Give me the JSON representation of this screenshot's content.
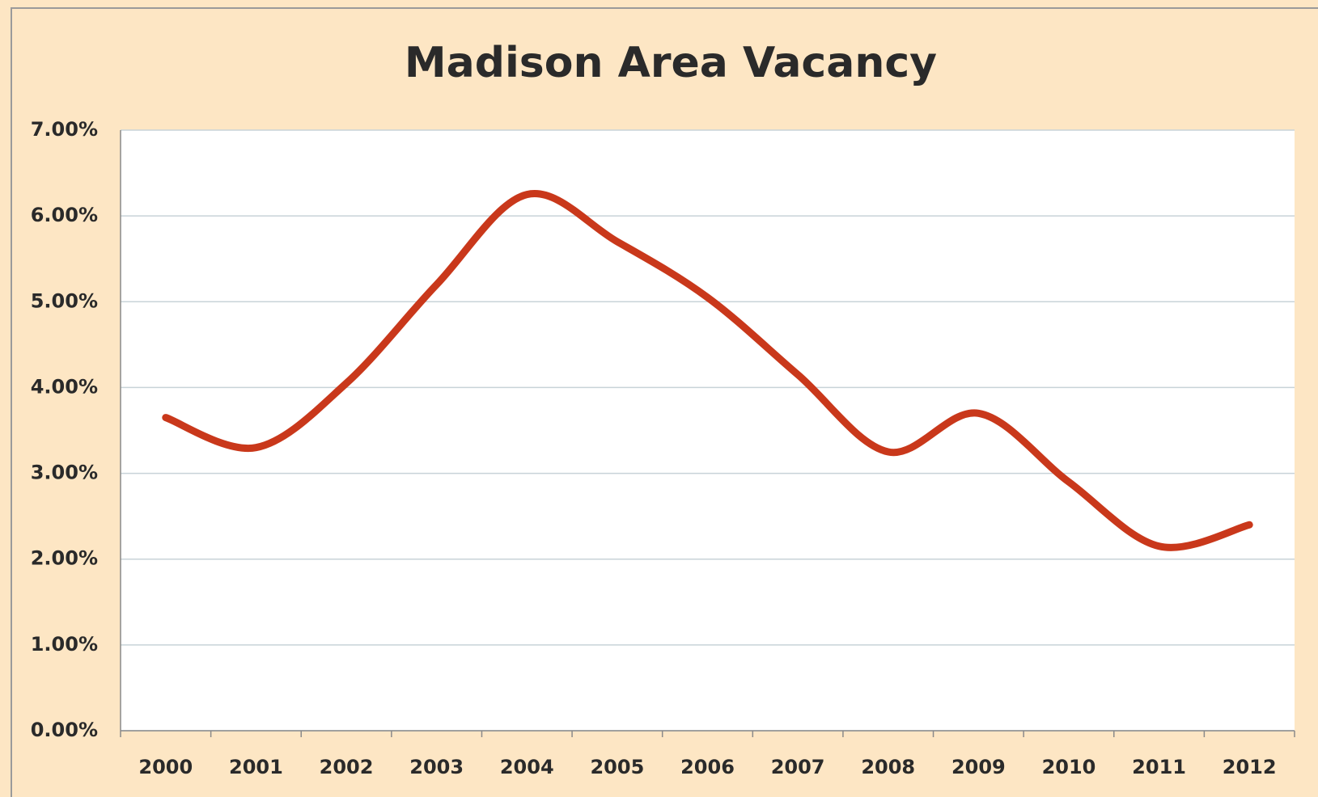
{
  "chart_data": {
    "type": "line",
    "title": "Madison Area Vacancy",
    "categories": [
      "2000",
      "2001",
      "2002",
      "2003",
      "2004",
      "2005",
      "2006",
      "2007",
      "2008",
      "2009",
      "2010",
      "2011",
      "2012"
    ],
    "series": [
      {
        "color": "#c9381b",
        "values": [
          3.65,
          3.3,
          4.05,
          5.2,
          6.25,
          5.7,
          5.05,
          4.15,
          3.25,
          3.7,
          2.9,
          2.15,
          2.4
        ]
      }
    ],
    "ylim": [
      0,
      7
    ],
    "yticks": [
      {
        "value": 0,
        "label": "0.00%"
      },
      {
        "value": 1,
        "label": "1.00%"
      },
      {
        "value": 2,
        "label": "2.00%"
      },
      {
        "value": 3,
        "label": "3.00%"
      },
      {
        "value": 4,
        "label": "4.00%"
      },
      {
        "value": 5,
        "label": "5.00%"
      },
      {
        "value": 6,
        "label": "6.00%"
      },
      {
        "value": 7,
        "label": "7.00%"
      }
    ],
    "grid": true,
    "smooth": true
  }
}
